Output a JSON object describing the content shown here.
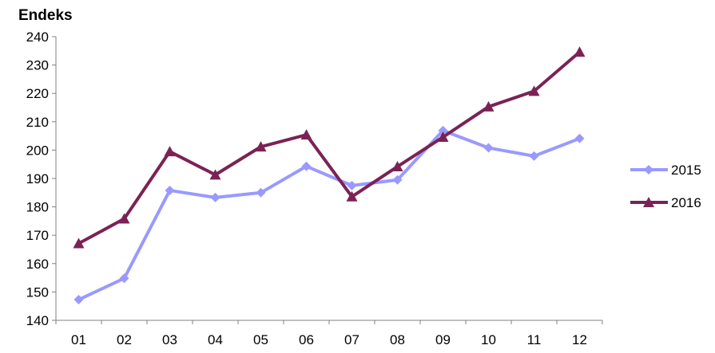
{
  "chart_data": {
    "type": "line",
    "ylabel": "Endeks",
    "categories": [
      "01",
      "02",
      "03",
      "04",
      "05",
      "06",
      "07",
      "08",
      "09",
      "10",
      "11",
      "12"
    ],
    "ylim": [
      140,
      240
    ],
    "yticks": [
      140,
      150,
      160,
      170,
      180,
      190,
      200,
      210,
      220,
      230,
      240
    ],
    "grid": false,
    "legend_position": "right",
    "series": [
      {
        "name": "2015",
        "color": "#9999FF",
        "marker": "diamond",
        "values": [
          147.3,
          154.8,
          185.8,
          183.3,
          185.0,
          194.3,
          187.5,
          189.5,
          206.9,
          200.8,
          197.9,
          204.1
        ]
      },
      {
        "name": "2016",
        "color": "#7B2255",
        "marker": "triangle",
        "values": [
          167.1,
          175.8,
          199.5,
          191.3,
          201.2,
          205.4,
          183.6,
          194.2,
          204.6,
          215.3,
          220.8,
          234.6
        ]
      }
    ]
  }
}
